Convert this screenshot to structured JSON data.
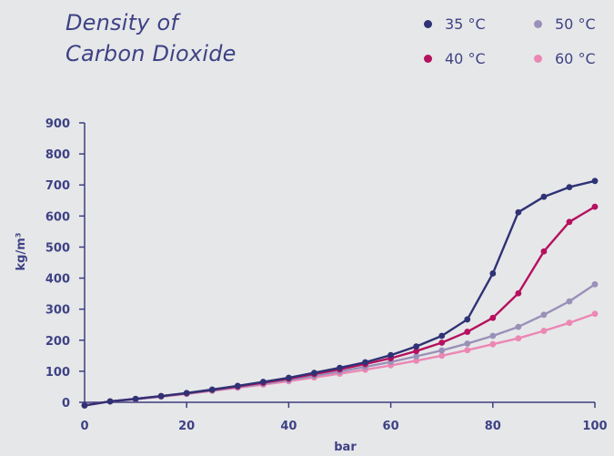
{
  "chart_data": {
    "type": "line",
    "title": "Density of\nCarbon Dioxide",
    "title_lines": [
      "Density of",
      "Carbon Dioxide"
    ],
    "xlabel": "bar",
    "ylabel": "kg/m³",
    "xlim": [
      0,
      100
    ],
    "ylim": [
      0,
      900
    ],
    "xticks": [
      0,
      20,
      40,
      60,
      80,
      100
    ],
    "yticks": [
      0,
      100,
      200,
      300,
      400,
      500,
      600,
      700,
      800,
      900
    ],
    "grid": false,
    "legend_position": "top-right",
    "x": [
      0,
      5,
      10,
      15,
      20,
      25,
      30,
      35,
      40,
      45,
      50,
      55,
      60,
      65,
      70,
      75,
      80,
      85,
      90,
      95,
      100
    ],
    "series": [
      {
        "name": "35 °C",
        "color": "#2f3274",
        "values": [
          -10,
          3,
          11,
          20,
          30,
          41,
          53,
          66,
          79,
          95,
          111,
          129,
          152,
          180,
          214,
          267,
          415,
          612,
          662,
          693,
          713
        ]
      },
      {
        "name": "40 °C",
        "color": "#b5115e",
        "values": [
          -10,
          3,
          11,
          20,
          29,
          40,
          51,
          63,
          76,
          91,
          106,
          123,
          142,
          165,
          192,
          227,
          272,
          351,
          486,
          581,
          630
        ]
      },
      {
        "name": "50 °C",
        "color": "#9a90b8",
        "values": [
          -10,
          3,
          10,
          19,
          28,
          38,
          49,
          60,
          72,
          85,
          99,
          114,
          130,
          148,
          167,
          189,
          214,
          243,
          282,
          325,
          380
        ]
      },
      {
        "name": "60 °C",
        "color": "#ec87b4",
        "values": [
          -10,
          3,
          10,
          18,
          27,
          37,
          47,
          57,
          68,
          80,
          92,
          105,
          119,
          134,
          150,
          168,
          187,
          206,
          230,
          256,
          285
        ]
      }
    ]
  },
  "colors": {
    "background": "#e6e7e9",
    "axis": "#3c3f7e",
    "text": "#3e4284"
  }
}
